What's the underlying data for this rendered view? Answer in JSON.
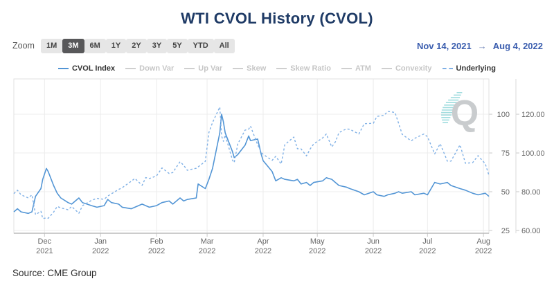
{
  "page": {
    "title": "WTI CVOL History (CVOL)",
    "source": "Source: CME Group"
  },
  "toolbar": {
    "zoom_label": "Zoom",
    "zoom_buttons": [
      {
        "label": "1M",
        "selected": false
      },
      {
        "label": "3M",
        "selected": true
      },
      {
        "label": "6M",
        "selected": false
      },
      {
        "label": "1Y",
        "selected": false
      },
      {
        "label": "2Y",
        "selected": false
      },
      {
        "label": "3Y",
        "selected": false
      },
      {
        "label": "5Y",
        "selected": false
      },
      {
        "label": "YTD",
        "selected": false
      },
      {
        "label": "All",
        "selected": false
      }
    ],
    "date_range": {
      "start": "Nov 14, 2021",
      "arrow": "→",
      "end": "Aug 4, 2022"
    }
  },
  "legend": {
    "items": [
      {
        "label": "CVOL Index",
        "active": true,
        "dashed": false
      },
      {
        "label": "Down Var",
        "active": false,
        "dashed": false
      },
      {
        "label": "Up Var",
        "active": false,
        "dashed": false
      },
      {
        "label": "Skew",
        "active": false,
        "dashed": false
      },
      {
        "label": "Skew Ratio",
        "active": false,
        "dashed": false
      },
      {
        "label": "ATM",
        "active": false,
        "dashed": false
      },
      {
        "label": "Convexity",
        "active": false,
        "dashed": false
      },
      {
        "label": "Underlying",
        "active": true,
        "dashed": true
      }
    ]
  },
  "watermark": "Q",
  "colors": {
    "title": "#1f3b66",
    "accent_blue": "#3a5dae",
    "cvol_line": "#5295d5",
    "underlying_line": "#7fb0e6",
    "inactive": "#c6c6c6",
    "axis_label": "#666666",
    "watermark_gray": "#c9ccce",
    "watermark_teal": "#8fd6d9"
  },
  "chart_data": {
    "type": "line",
    "title": "WTI CVOL History (CVOL)",
    "grid": true,
    "legend_position": "top",
    "x_range": [
      "2021-11-14",
      "2022-08-04"
    ],
    "x_ticks": [
      {
        "label": "Dec",
        "year": "2021",
        "date": "2021-12-01"
      },
      {
        "label": "Jan",
        "year": "2022",
        "date": "2022-01-01"
      },
      {
        "label": "Feb",
        "year": "2022",
        "date": "2022-02-01"
      },
      {
        "label": "Mar",
        "year": "2022",
        "date": "2022-03-01"
      },
      {
        "label": "Apr",
        "year": "2022",
        "date": "2022-04-01"
      },
      {
        "label": "May",
        "year": "2022",
        "date": "2022-05-01"
      },
      {
        "label": "Jun",
        "year": "2022",
        "date": "2022-06-01"
      },
      {
        "label": "Jul",
        "year": "2022",
        "date": "2022-07-01"
      },
      {
        "label": "Aug",
        "year": "2022",
        "date": "2022-08-01"
      }
    ],
    "y_axes": {
      "cvol": {
        "ticks": [
          25,
          50,
          75,
          100
        ],
        "labels": [
          "25",
          "50",
          "75",
          "100"
        ],
        "lim": [
          23.2,
          122.8
        ],
        "side": "right-inner"
      },
      "price": {
        "ticks": [
          60,
          80,
          100,
          120
        ],
        "labels": [
          "60.00",
          "80.00",
          "100.00",
          "120.00"
        ],
        "lim": [
          58.6,
          138.2
        ],
        "side": "right-outer"
      }
    },
    "dates": [
      "2021-11-14",
      "2021-11-16",
      "2021-11-18",
      "2021-11-22",
      "2021-11-24",
      "2021-11-26",
      "2021-11-29",
      "2021-11-30",
      "2021-12-02",
      "2021-12-03",
      "2021-12-06",
      "2021-12-08",
      "2021-12-10",
      "2021-12-14",
      "2021-12-16",
      "2021-12-20",
      "2021-12-22",
      "2021-12-27",
      "2021-12-30",
      "2022-01-03",
      "2022-01-05",
      "2022-01-07",
      "2022-01-11",
      "2022-01-13",
      "2022-01-18",
      "2022-01-20",
      "2022-01-24",
      "2022-01-26",
      "2022-01-28",
      "2022-02-01",
      "2022-02-04",
      "2022-02-08",
      "2022-02-10",
      "2022-02-14",
      "2022-02-16",
      "2022-02-18",
      "2022-02-23",
      "2022-02-24",
      "2022-02-28",
      "2022-03-02",
      "2022-03-04",
      "2022-03-08",
      "2022-03-09",
      "2022-03-10",
      "2022-03-11",
      "2022-03-15",
      "2022-03-16",
      "2022-03-18",
      "2022-03-22",
      "2022-03-24",
      "2022-03-25",
      "2022-03-29",
      "2022-03-31",
      "2022-04-01",
      "2022-04-06",
      "2022-04-08",
      "2022-04-11",
      "2022-04-13",
      "2022-04-18",
      "2022-04-20",
      "2022-04-22",
      "2022-04-25",
      "2022-04-27",
      "2022-04-29",
      "2022-05-04",
      "2022-05-06",
      "2022-05-09",
      "2022-05-11",
      "2022-05-13",
      "2022-05-17",
      "2022-05-19",
      "2022-05-24",
      "2022-05-27",
      "2022-06-01",
      "2022-06-03",
      "2022-06-07",
      "2022-06-09",
      "2022-06-13",
      "2022-06-15",
      "2022-06-17",
      "2022-06-22",
      "2022-06-24",
      "2022-06-29",
      "2022-07-01",
      "2022-07-05",
      "2022-07-08",
      "2022-07-12",
      "2022-07-14",
      "2022-07-19",
      "2022-07-22",
      "2022-07-26",
      "2022-07-29",
      "2022-08-02",
      "2022-08-04"
    ],
    "series": [
      {
        "name": "CVOL Index",
        "axis": "cvol",
        "style": "solid",
        "values": [
          37,
          39,
          37,
          36,
          37,
          47,
          52,
          58,
          65,
          63,
          54,
          49,
          46,
          43,
          42,
          46,
          43,
          41,
          40,
          41,
          45,
          43,
          42,
          40,
          39,
          40,
          42,
          41,
          40,
          41,
          43,
          44,
          42,
          46,
          44,
          45,
          46,
          55,
          52,
          58,
          65,
          88,
          100,
          95,
          88,
          76,
          72,
          74,
          80,
          86,
          83,
          84,
          74,
          70,
          63,
          57,
          59,
          58,
          57,
          58,
          55,
          56,
          54,
          56,
          57,
          59,
          58,
          56,
          54,
          53,
          52,
          50,
          48,
          50,
          48,
          47,
          48,
          49,
          50,
          49,
          50,
          48,
          49,
          48,
          56,
          55,
          56,
          54,
          52,
          51,
          49,
          48,
          49,
          47
        ]
      },
      {
        "name": "Underlying",
        "axis": "price",
        "style": "dashed",
        "values": [
          79.0,
          80.8,
          78.4,
          76.8,
          78.4,
          68.2,
          69.9,
          66.2,
          66.5,
          66.3,
          69.5,
          72.4,
          71.7,
          70.7,
          72.4,
          68.9,
          72.8,
          75.6,
          76.6,
          76.1,
          77.8,
          78.9,
          81.2,
          82.1,
          85.4,
          86.9,
          83.3,
          87.3,
          86.8,
          88.2,
          92.3,
          89.4,
          89.9,
          95.5,
          93.7,
          91.1,
          92.1,
          92.8,
          95.7,
          110.6,
          115.7,
          123.7,
          108.7,
          106.0,
          109.3,
          96.4,
          95.0,
          104.7,
          111.8,
          112.3,
          113.9,
          104.2,
          100.3,
          99.3,
          96.2,
          98.3,
          94.3,
          104.3,
          108.2,
          102.2,
          102.1,
          98.5,
          102.0,
          104.7,
          107.8,
          109.8,
          103.1,
          105.7,
          110.5,
          112.4,
          112.2,
          109.8,
          115.1,
          115.3,
          118.9,
          119.4,
          121.5,
          120.9,
          115.3,
          109.6,
          106.2,
          107.6,
          109.8,
          108.4,
          99.5,
          104.8,
          95.8,
          95.8,
          104.2,
          94.7,
          95.0,
          98.6,
          94.4,
          88.5
        ]
      }
    ]
  }
}
